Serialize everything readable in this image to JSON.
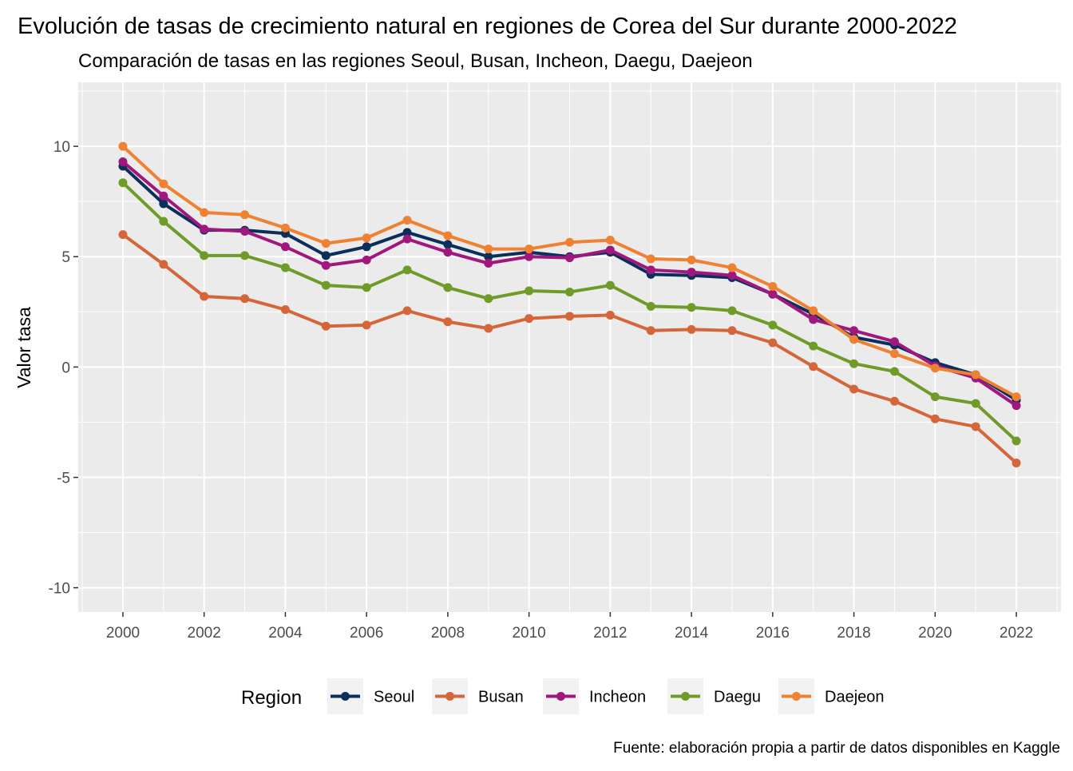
{
  "chart_data": {
    "type": "line",
    "title": "Evolución de tasas de crecimiento natural en regiones de Corea del Sur durante 2000-2022",
    "subtitle": "Comparación de  tasas en las regiones Seoul, Busan, Incheon, Daegu, Daejeon",
    "xlabel": "",
    "ylabel": "Valor tasa",
    "caption": "Fuente: elaboración propia a partir de datos disponibles en Kaggle",
    "legend_title": "Region",
    "legend_position": "bottom",
    "grid": true,
    "xlim": [
      1998.9,
      2023.1
    ],
    "ylim": [
      -11.1,
      12.9
    ],
    "x_ticks": [
      2000,
      2002,
      2004,
      2006,
      2008,
      2010,
      2012,
      2014,
      2016,
      2018,
      2020,
      2022
    ],
    "y_ticks": [
      -10,
      -5,
      0,
      5,
      10
    ],
    "y_tick_labels": [
      "-10",
      "-5",
      "0",
      "5",
      "10"
    ],
    "x": [
      2000,
      2001,
      2002,
      2003,
      2004,
      2005,
      2006,
      2007,
      2008,
      2009,
      2010,
      2011,
      2012,
      2013,
      2014,
      2015,
      2016,
      2017,
      2018,
      2019,
      2020,
      2021,
      2022
    ],
    "series": [
      {
        "name": "Seoul",
        "color": "#0b2e5b",
        "values": [
          9.1,
          7.4,
          6.2,
          6.2,
          6.05,
          5.05,
          5.45,
          6.1,
          5.55,
          5.0,
          5.2,
          5.0,
          5.2,
          4.2,
          4.15,
          4.05,
          3.3,
          2.4,
          1.35,
          1.0,
          0.2,
          -0.35,
          -1.5
        ]
      },
      {
        "name": "Busan",
        "color": "#d4663a",
        "values": [
          6.0,
          4.65,
          3.2,
          3.1,
          2.6,
          1.85,
          1.9,
          2.55,
          2.05,
          1.75,
          2.2,
          2.3,
          2.35,
          1.65,
          1.7,
          1.65,
          1.1,
          0.02,
          -1.0,
          -1.55,
          -2.35,
          -2.7,
          -4.35
        ]
      },
      {
        "name": "Incheon",
        "color": "#a0177e",
        "values": [
          9.3,
          7.75,
          6.25,
          6.15,
          5.45,
          4.6,
          4.85,
          5.8,
          5.2,
          4.7,
          5.0,
          4.95,
          5.3,
          4.4,
          4.3,
          4.15,
          3.3,
          2.15,
          1.65,
          1.15,
          0.05,
          -0.5,
          -1.75
        ]
      },
      {
        "name": "Daegu",
        "color": "#6f9b28",
        "values": [
          8.35,
          6.6,
          5.05,
          5.05,
          4.5,
          3.7,
          3.6,
          4.4,
          3.6,
          3.1,
          3.45,
          3.4,
          3.7,
          2.75,
          2.7,
          2.55,
          1.9,
          0.95,
          0.15,
          -0.2,
          -1.35,
          -1.65,
          -3.35
        ]
      },
      {
        "name": "Daejeon",
        "color": "#ee8232",
        "values": [
          10.0,
          8.3,
          7.0,
          6.9,
          6.3,
          5.6,
          5.85,
          6.65,
          5.95,
          5.35,
          5.35,
          5.65,
          5.75,
          4.9,
          4.85,
          4.5,
          3.65,
          2.55,
          1.25,
          0.6,
          -0.05,
          -0.35,
          -1.35
        ]
      }
    ]
  }
}
